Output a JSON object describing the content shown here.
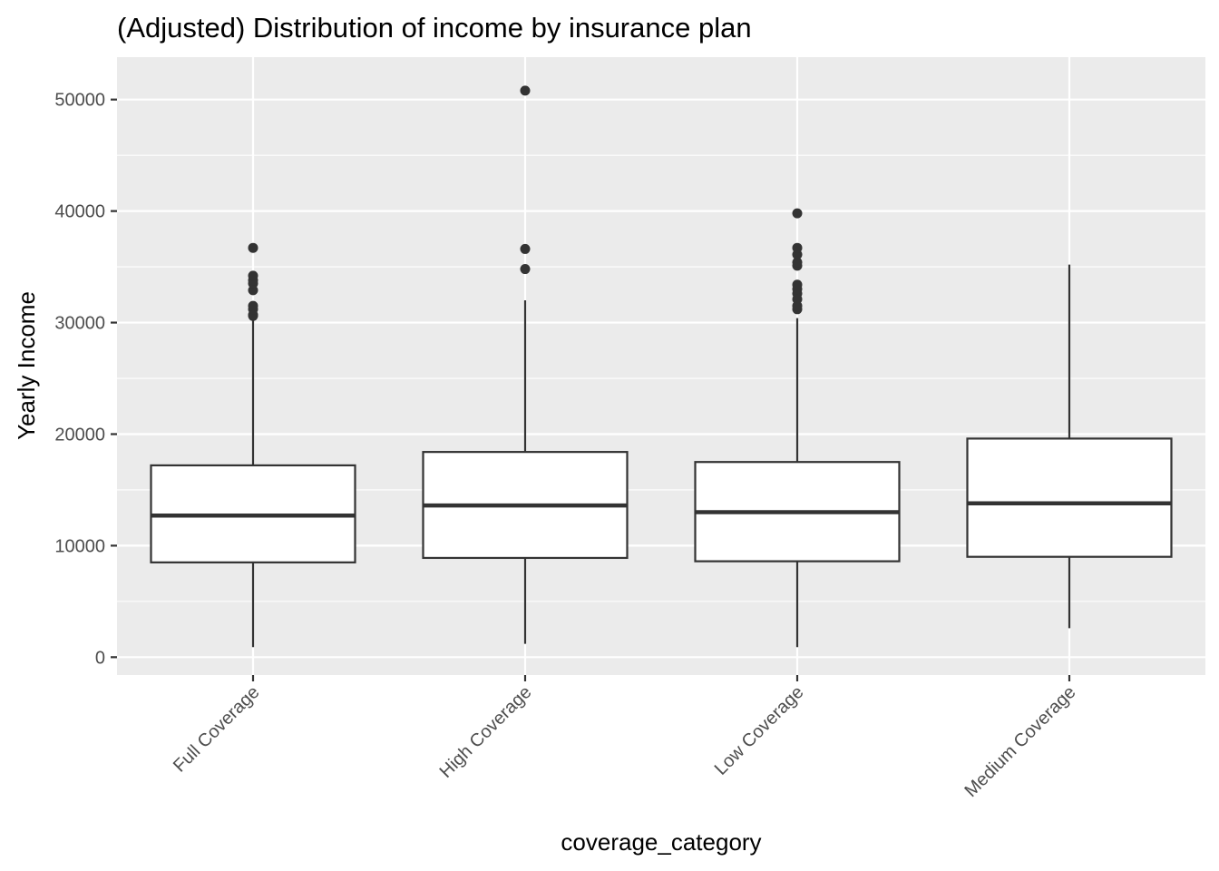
{
  "chart_data": {
    "type": "boxplot",
    "title": "(Adjusted) Distribution of income by insurance plan",
    "xlabel": "coverage_category",
    "ylabel": "Yearly Income",
    "ylim": [
      -1600,
      53800
    ],
    "y_ticks": [
      0,
      10000,
      20000,
      30000,
      40000,
      50000
    ],
    "y_tick_labels": [
      "0",
      "10000",
      "20000",
      "30000",
      "40000",
      "50000"
    ],
    "categories": [
      "Full Coverage",
      "High Coverage",
      "Low Coverage",
      "Medium Coverage"
    ],
    "grid": true,
    "legend": "none",
    "colors": {
      "panel": "#ebebeb",
      "grid_major": "#ffffff",
      "box_fill": "#ffffff",
      "box_stroke": "#333333",
      "outlier": "#333333",
      "text": "#000000",
      "tick_text": "#4d4d4d"
    },
    "boxes": [
      {
        "category": "Full Coverage",
        "whisker_low": 900,
        "q1": 8500,
        "median": 12700,
        "q3": 17200,
        "whisker_high": 30400,
        "outliers": [
          30600,
          30700,
          31200,
          31500,
          32900,
          33500,
          33800,
          34200,
          36700
        ]
      },
      {
        "category": "High Coverage",
        "whisker_low": 1200,
        "q1": 8900,
        "median": 13600,
        "q3": 18400,
        "whisker_high": 32000,
        "outliers": [
          34800,
          36600,
          50800
        ]
      },
      {
        "category": "Low Coverage",
        "whisker_low": 900,
        "q1": 8600,
        "median": 13000,
        "q3": 17500,
        "whisker_high": 30400,
        "outliers": [
          31200,
          31500,
          32100,
          32600,
          33000,
          33400,
          35100,
          35400,
          36100,
          36700,
          39800
        ]
      },
      {
        "category": "Medium Coverage",
        "whisker_low": 2600,
        "q1": 9000,
        "median": 13800,
        "q3": 19600,
        "whisker_high": 35200,
        "outliers": []
      }
    ]
  }
}
